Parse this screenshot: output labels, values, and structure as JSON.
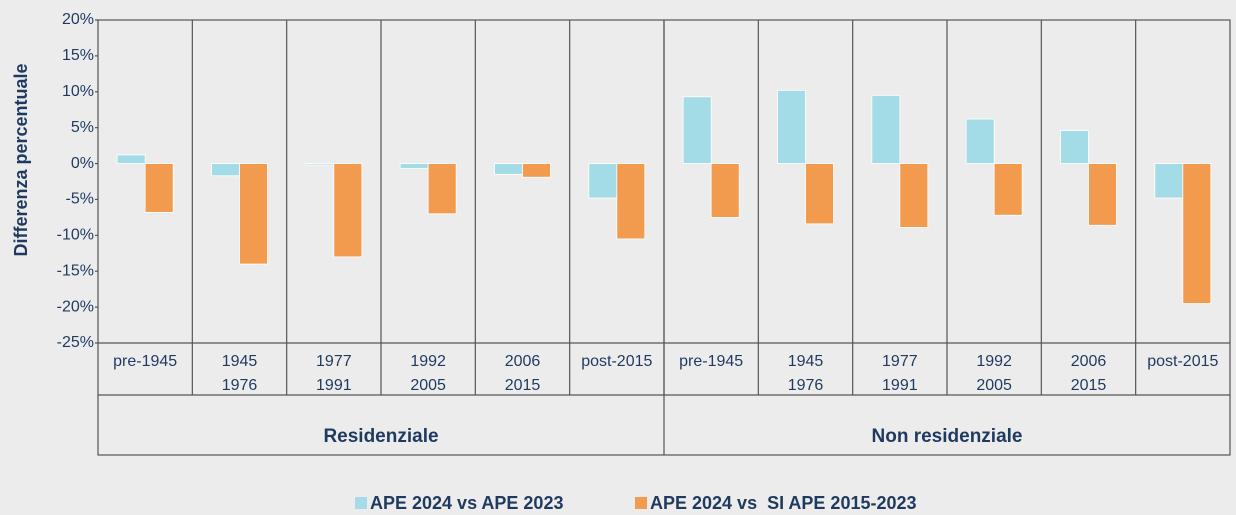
{
  "chart_data": {
    "type": "bar",
    "y_label": "Differenza percentuale",
    "categories": [
      [
        "pre-1945"
      ],
      [
        "1945",
        "1976"
      ],
      [
        "1977",
        "1991"
      ],
      [
        "1992",
        "2005"
      ],
      [
        "2006",
        "2015"
      ],
      [
        "post-2015"
      ],
      [
        "pre-1945"
      ],
      [
        "1945",
        "1976"
      ],
      [
        "1977",
        "1991"
      ],
      [
        "1992",
        "2005"
      ],
      [
        "2006",
        "2015"
      ],
      [
        "post-2015"
      ]
    ],
    "groups": [
      {
        "name": "Residenziale",
        "size": 6
      },
      {
        "name": "Non residenziale",
        "size": 6
      }
    ],
    "series": [
      {
        "name": "APE 2024 vs APE 2023",
        "color": "#a3dbe7",
        "values": [
          1.2,
          -1.7,
          -0.2,
          -0.7,
          -1.5,
          -4.8,
          9.3,
          10.2,
          9.5,
          6.2,
          4.6,
          -4.8
        ]
      },
      {
        "name": "APE 2024 vs  SI APE 2015-2023",
        "color": "#f29a4e",
        "values": [
          -6.8,
          -14.0,
          -13.0,
          -7.0,
          -1.9,
          -10.5,
          -7.5,
          -8.4,
          -8.9,
          -7.2,
          -8.6,
          -19.5
        ]
      }
    ],
    "ylim": [
      -25,
      20
    ],
    "yticks": [
      {
        "value": -25,
        "label": "-25%"
      },
      {
        "value": -20,
        "label": "-20%"
      },
      {
        "value": -15,
        "label": "-15%"
      },
      {
        "value": -10,
        "label": "-10%"
      },
      {
        "value": -5,
        "label": "-5%"
      },
      {
        "value": 0,
        "label": "0%"
      },
      {
        "value": 5,
        "label": "5%"
      },
      {
        "value": 10,
        "label": "10%"
      },
      {
        "value": 15,
        "label": "15%"
      },
      {
        "value": 20,
        "label": "20%"
      }
    ],
    "legend": "bottom"
  }
}
